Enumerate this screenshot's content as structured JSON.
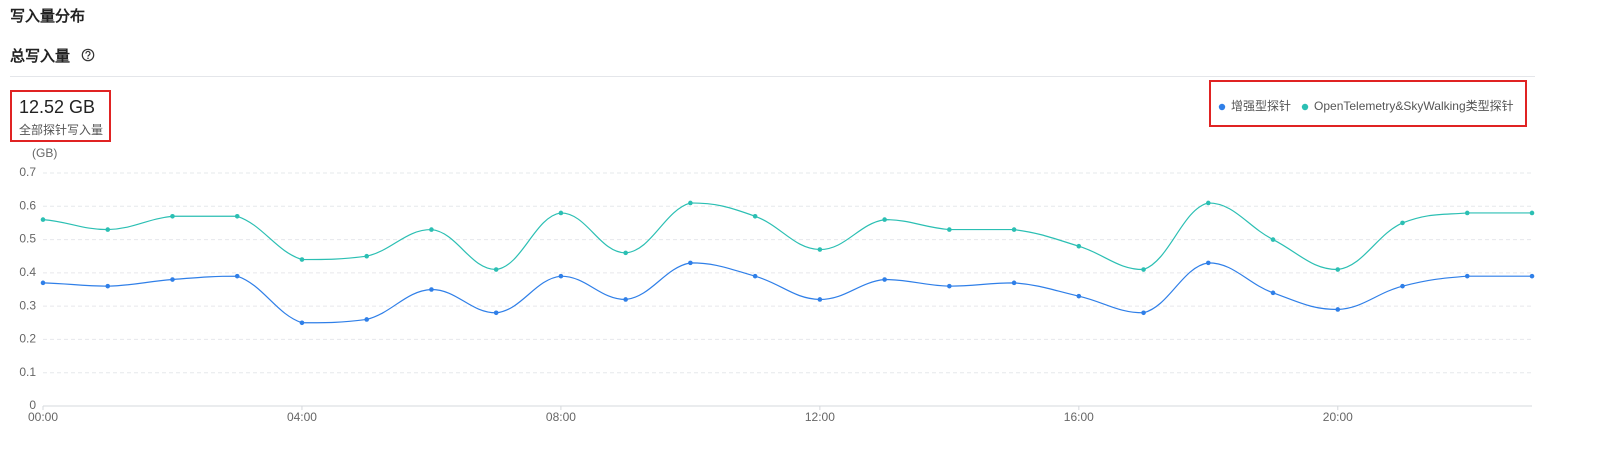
{
  "header": {
    "title": "写入量分布"
  },
  "section": {
    "title": "总写入量"
  },
  "stat": {
    "value": "12.52 GB",
    "label": "全部探针写入量"
  },
  "chart_data": {
    "type": "line",
    "y_label": "(GB)",
    "categories": [
      "00:00",
      null,
      null,
      null,
      "04:00",
      null,
      null,
      null,
      "08:00",
      null,
      null,
      null,
      "12:00",
      null,
      null,
      null,
      "16:00",
      null,
      null,
      null,
      "20:00",
      null,
      null,
      null
    ],
    "series": [
      {
        "name": "增强型探针",
        "color": "#2f7fe8",
        "values": [
          0.37,
          0.36,
          0.38,
          0.39,
          0.25,
          0.26,
          0.35,
          0.28,
          0.39,
          0.32,
          0.43,
          0.39,
          0.32,
          0.38,
          0.36,
          0.37,
          0.33,
          0.28,
          0.43,
          0.34,
          0.29,
          0.36,
          0.39,
          0.39
        ]
      },
      {
        "name": "OpenTelemetry&SkyWalking类型探针",
        "color": "#2bbfb3",
        "values": [
          0.56,
          0.53,
          0.57,
          0.57,
          0.44,
          0.45,
          0.53,
          0.41,
          0.58,
          0.46,
          0.61,
          0.57,
          0.47,
          0.56,
          0.53,
          0.53,
          0.48,
          0.41,
          0.61,
          0.5,
          0.41,
          0.55,
          0.58,
          0.58
        ]
      }
    ],
    "ylim": [
      0,
      0.7
    ],
    "yticks": [
      0,
      0.1,
      0.2,
      0.3,
      0.4,
      0.5,
      0.6,
      0.7
    ],
    "grid": true,
    "smooth": true,
    "legend": "top-right"
  }
}
